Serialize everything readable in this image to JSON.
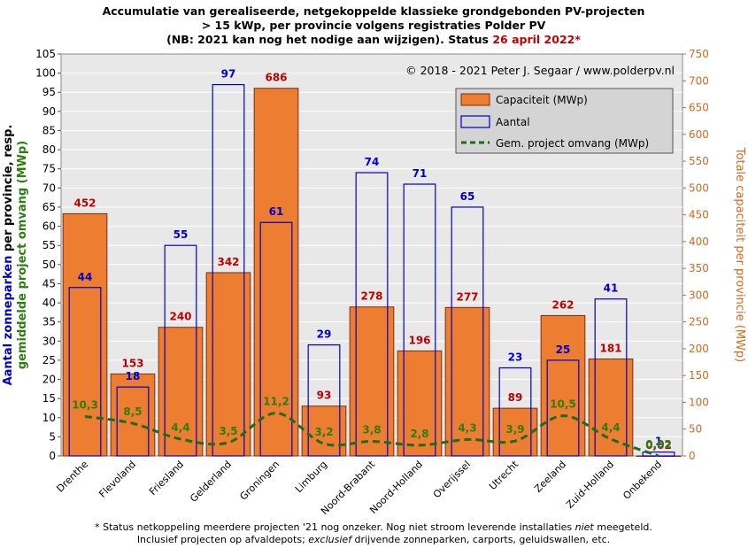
{
  "chart_data": {
    "type": "bar",
    "title_lines": [
      "Accumulatie van gerealiseerde, netgekoppelde klassieke grondgebonden PV-projecten",
      "> 15 kWp, per provincie volgens registraties Polder PV",
      "(NB: 2021 kan nog het nodige aan wijzigen). Status "
    ],
    "title_date": "26 april 2022*",
    "copyright": "© 2018 - 2021 Peter J. Segaar / www.polderpv.nl",
    "ylabel_left": {
      "part1": "Aantal zonneparken",
      "part2": " per provincie, resp.",
      "part3": "gemiddelde project omvang (MWp)"
    },
    "ylabel_right": "Totale capaciteit per provincie (MWp)",
    "categories": [
      "Drenthe",
      "Flevoland",
      "Friesland",
      "Gelderland",
      "Groningen",
      "Limburg",
      "Noord-Brabant",
      "Noord-Holland",
      "Overijssel",
      "Utrecht",
      "Zeeland",
      "Zuid-Holland",
      "Onbekend"
    ],
    "ylim_left": [
      0,
      105
    ],
    "yticks_left": [
      0,
      5,
      10,
      15,
      20,
      25,
      30,
      35,
      40,
      45,
      50,
      55,
      60,
      65,
      70,
      75,
      80,
      85,
      90,
      95,
      100,
      105
    ],
    "ylim_right": [
      0,
      750
    ],
    "yticks_right": [
      0,
      50,
      100,
      150,
      200,
      250,
      300,
      350,
      400,
      450,
      500,
      550,
      600,
      650,
      700,
      750
    ],
    "series": [
      {
        "name": "Capaciteit (MWp)",
        "axis": "right",
        "values": [
          452,
          153,
          240,
          342,
          686,
          93,
          278,
          196,
          277,
          89,
          262,
          181,
          0.02
        ],
        "labels": [
          "452",
          "153",
          "240",
          "342",
          "686",
          "93",
          "278",
          "196",
          "277",
          "89",
          "262",
          "181",
          "0,02"
        ]
      },
      {
        "name": "Aantal",
        "axis": "left",
        "values": [
          44,
          18,
          55,
          97,
          61,
          29,
          74,
          71,
          65,
          23,
          25,
          41,
          1
        ],
        "labels": [
          "44",
          "18",
          "55",
          "97",
          "61",
          "29",
          "74",
          "71",
          "65",
          "23",
          "25",
          "41",
          "1"
        ]
      },
      {
        "name": "Gem. project omvang (MWp)",
        "axis": "left",
        "values": [
          10.3,
          8.5,
          4.4,
          3.5,
          11.2,
          3.2,
          3.8,
          2.8,
          4.3,
          3.9,
          10.5,
          4.4,
          0.02
        ],
        "labels": [
          "10,3",
          "8,5",
          "4,4",
          "3,5",
          "11,2",
          "3,2",
          "3,8",
          "2,8",
          "4,3",
          "3,9",
          "10,5",
          "4,4",
          "0,02"
        ]
      }
    ],
    "legend_position": "top-right",
    "colors": {
      "capacity_fill": "#ed7d31",
      "capacity_stroke": "#7a2e10",
      "count_stroke": "#0000cc",
      "avg_line": "#1e6b1e",
      "capacity_label": "#c00000",
      "count_label": "#0000cc",
      "avg_label": "#2e7d0f",
      "plot_bg": "#e8e8e8",
      "right_axis": "#d2691e"
    },
    "footnote": [
      "* Status netkoppeling meerdere projecten '21 nog onzeker. Nog niet stroom leverende installaties ",
      "niet",
      " meegeteld.",
      "Inclusief projecten op afvaldepots; ",
      "exclusief",
      " drijvende zonneparken, carports, geluidswallen, etc."
    ]
  }
}
